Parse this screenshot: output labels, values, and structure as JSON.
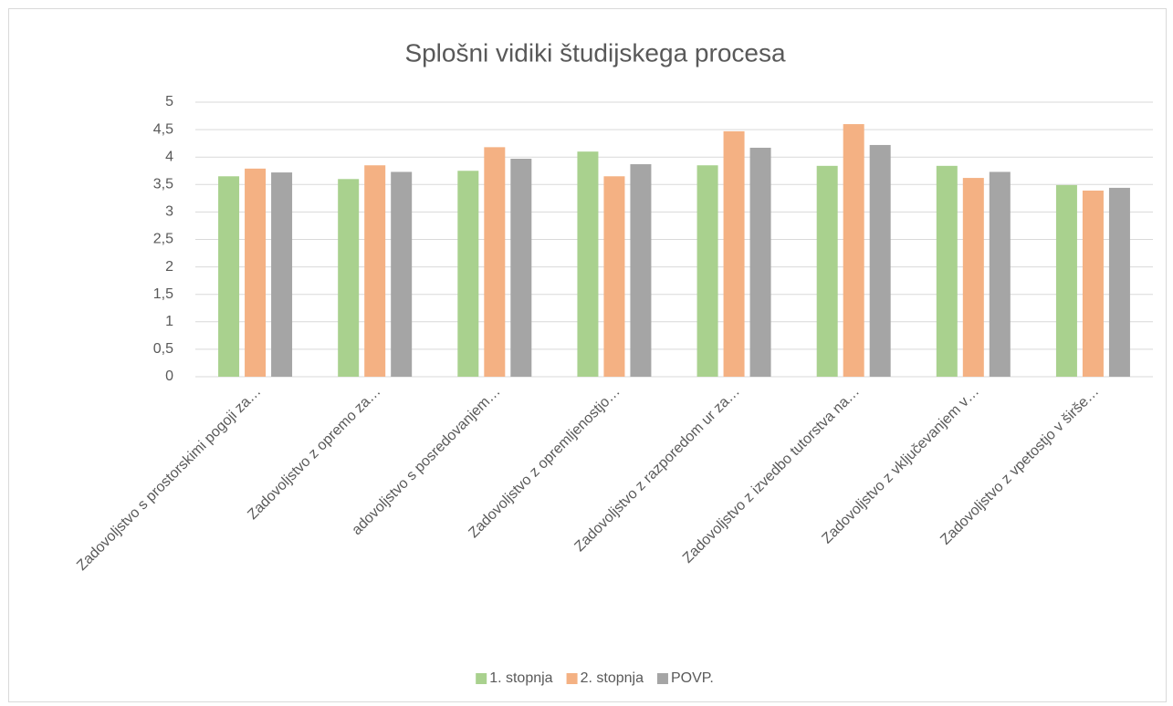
{
  "chart_data": {
    "type": "bar",
    "title": "Splošni vidiki študijskega procesa",
    "categories": [
      "Zadovoljstvo s prostorskimi pogoji za…",
      "Zadovoljstvo z opremo za…",
      "adovoljstvo s posredovanjem…",
      "Zadovoljstvo z opremljenostjo…",
      "Zadovoljstvo z razporedom ur za…",
      "Zadovoljstvo z izvedbo tutorstva na…",
      "Zadovoljstvo z vključevanjem v…",
      "Zadovoljstvo z vpetostjo v širše…"
    ],
    "series": [
      {
        "name": "1. stopnja",
        "color": "#a9d18e",
        "values": [
          3.65,
          3.6,
          3.75,
          4.1,
          3.85,
          3.84,
          3.84,
          3.49
        ]
      },
      {
        "name": "2. stopnja",
        "color": "#f4b183",
        "values": [
          3.79,
          3.85,
          4.18,
          3.65,
          4.47,
          4.6,
          3.62,
          3.39
        ]
      },
      {
        "name": "POVP.",
        "color": "#a5a5a5",
        "values": [
          3.72,
          3.73,
          3.97,
          3.87,
          4.17,
          4.22,
          3.73,
          3.44
        ]
      }
    ],
    "ylim": [
      0,
      5
    ],
    "yticks": [
      0,
      {
        "value": 0.5,
        "label": "0,5"
      },
      1,
      {
        "value": 1.5,
        "label": "1,5"
      },
      2,
      {
        "value": 2.5,
        "label": "2,5"
      },
      3,
      {
        "value": 3.5,
        "label": "3,5"
      },
      4,
      {
        "value": 4.5,
        "label": "4,5"
      },
      5
    ],
    "grid": true,
    "legend": "bottom"
  }
}
